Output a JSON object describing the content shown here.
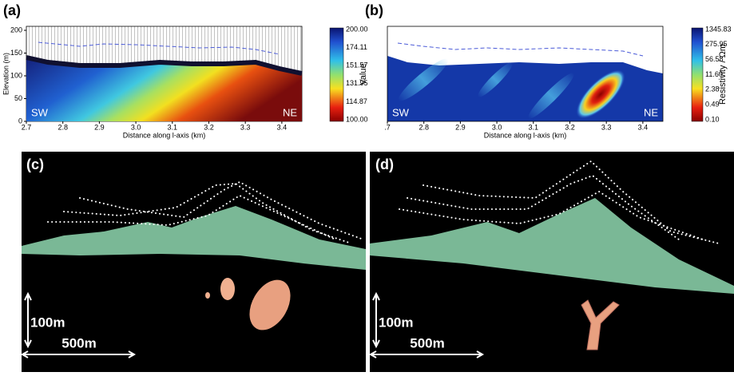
{
  "panels": [
    {
      "label": "(a)",
      "y_label": "Elevation (m)",
      "x_label": "Distance along l-axis (km)",
      "y_ticks": [
        "0",
        "50",
        "100",
        "150",
        "200"
      ],
      "x_ticks": [
        "2.7",
        "2.8",
        "2.9",
        "3.0",
        "3.1",
        "3.2",
        "3.3",
        "3.4"
      ],
      "left": "SW",
      "right": "NE",
      "colorbar_title": "Value",
      "colorbar_ticks": [
        "200.00",
        "174.11",
        "151.57",
        "131.95",
        "114.87",
        "100.00"
      ]
    },
    {
      "label": "(b)",
      "x_label": "Distance along l-axis (km)",
      "x_ticks": [
        ".7",
        "2.8",
        "2.9",
        "3.0",
        "3.1",
        "3.2",
        "3.3",
        "3.4"
      ],
      "left": "SW",
      "right": "NE",
      "colorbar_title": "Resistivity / Ωm",
      "colorbar_ticks": [
        "1345.83",
        "275.95",
        "56.58",
        "11.60",
        "2.38",
        "0.49",
        "0.10"
      ]
    },
    {
      "label": "(c)",
      "scale_vertical": "100m",
      "scale_horizontal": "500m"
    },
    {
      "label": "(d)",
      "scale_vertical": "100m",
      "scale_horizontal": "500m"
    }
  ]
}
